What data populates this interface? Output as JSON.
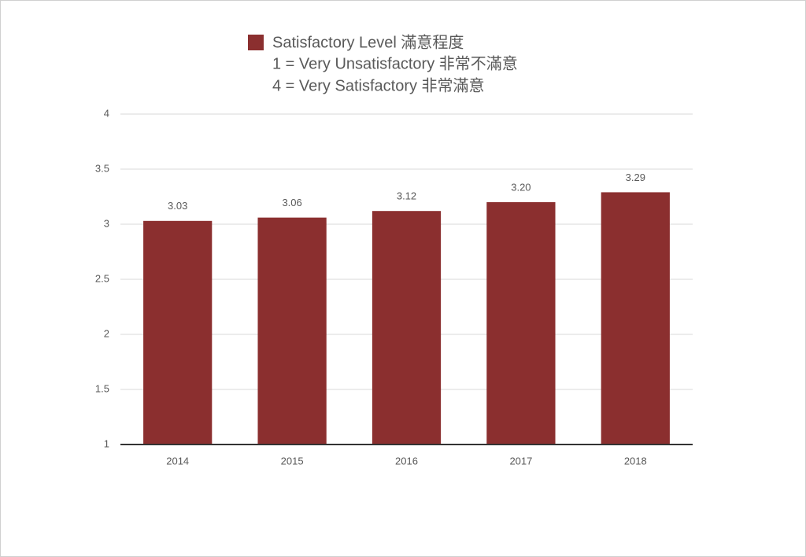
{
  "chart_data": {
    "type": "bar",
    "categories": [
      "2014",
      "2015",
      "2016",
      "2017",
      "2018"
    ],
    "series": [
      {
        "name": "Satisfactory Level 滿意程度",
        "color": "#8b2f2f",
        "values": [
          3.03,
          3.06,
          3.12,
          3.2,
          3.29
        ],
        "value_labels": [
          "3.03",
          "3.06",
          "3.12",
          "3.20",
          "3.29"
        ]
      }
    ],
    "annotations": [
      "1 = Very Unsatisfactory 非常不滿意",
      "4 = Very Satisfactory 非常滿意"
    ],
    "ylim": [
      1,
      4
    ],
    "yticks": [
      1,
      1.5,
      2,
      2.5,
      3,
      3.5,
      4
    ],
    "grid": true,
    "legend": "top"
  }
}
